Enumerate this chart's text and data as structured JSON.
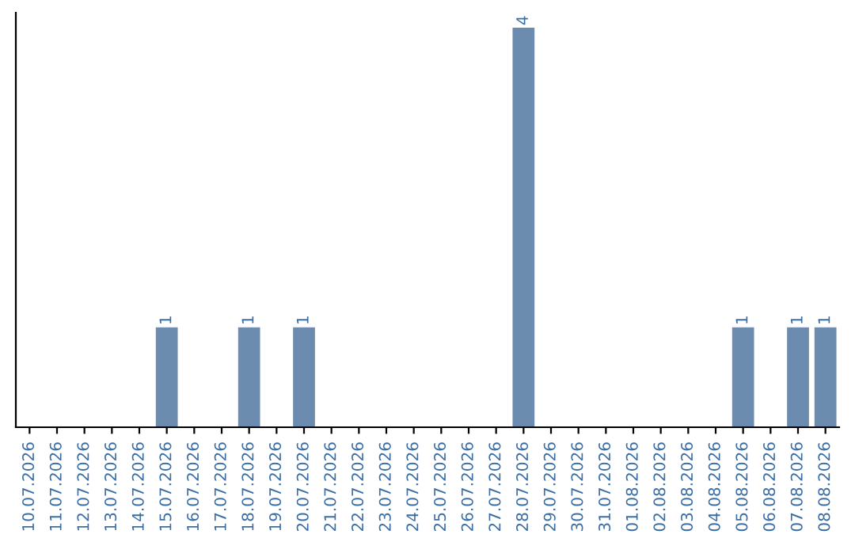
{
  "chart_data": {
    "type": "bar",
    "categories": [
      "10.07.2026",
      "11.07.2026",
      "12.07.2026",
      "13.07.2026",
      "14.07.2026",
      "15.07.2026",
      "16.07.2026",
      "17.07.2026",
      "18.07.2026",
      "19.07.2026",
      "20.07.2026",
      "21.07.2026",
      "22.07.2026",
      "23.07.2026",
      "24.07.2026",
      "25.07.2026",
      "26.07.2026",
      "27.07.2026",
      "28.07.2026",
      "29.07.2026",
      "30.07.2026",
      "31.07.2026",
      "01.08.2026",
      "02.08.2026",
      "03.08.2026",
      "04.08.2026",
      "05.08.2026",
      "06.08.2026",
      "07.08.2026",
      "08.08.2026"
    ],
    "values": [
      0,
      0,
      0,
      0,
      0,
      1,
      0,
      0,
      1,
      0,
      1,
      0,
      0,
      0,
      0,
      0,
      0,
      0,
      4,
      0,
      0,
      0,
      0,
      0,
      0,
      0,
      1,
      0,
      1,
      1
    ],
    "value_labels": [
      null,
      null,
      null,
      null,
      null,
      "1",
      null,
      null,
      "1",
      null,
      "1",
      null,
      null,
      null,
      null,
      null,
      null,
      null,
      "4",
      null,
      null,
      null,
      null,
      null,
      null,
      null,
      "1",
      null,
      "1",
      "1"
    ],
    "color": "#6b8caf",
    "ylim": [
      0,
      4.15
    ],
    "tick_labels": "x",
    "grid": false,
    "legend": false
  }
}
